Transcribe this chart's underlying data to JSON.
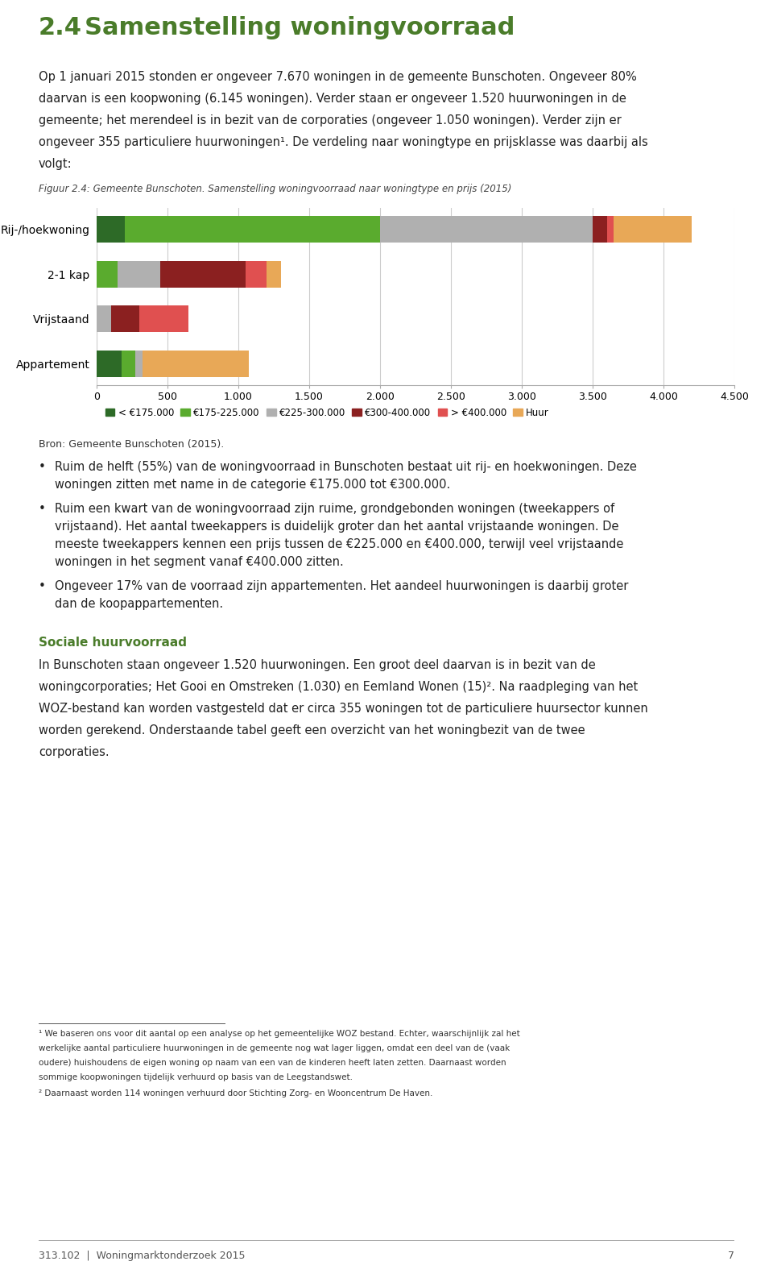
{
  "categories": [
    "Rij-/hoekwoning",
    "2-1 kap",
    "Vrijstaand",
    "Appartement"
  ],
  "series": {
    "< €175.000": [
      200,
      0,
      0,
      175
    ],
    "€175-225.000": [
      1800,
      150,
      0,
      100
    ],
    "€225-300.000": [
      1500,
      300,
      100,
      50
    ],
    "€300-400.000": [
      100,
      600,
      200,
      0
    ],
    "> €400.000": [
      50,
      150,
      350,
      0
    ],
    "Huur": [
      550,
      100,
      0,
      750
    ]
  },
  "colors": {
    "< €175.000": "#2d6a27",
    "€175-225.000": "#5aab2e",
    "€225-300.000": "#b0b0b0",
    "€300-400.000": "#8b2020",
    "> €400.000": "#e05050",
    "Huur": "#e8a857"
  },
  "xlim": [
    0,
    4500
  ],
  "xticks": [
    0,
    500,
    1000,
    1500,
    2000,
    2500,
    3000,
    3500,
    4000,
    4500
  ],
  "xtick_labels": [
    "0",
    "500",
    "1.000",
    "1.500",
    "2.000",
    "2.500",
    "3.000",
    "3.500",
    "4.000",
    "4.500"
  ],
  "chart_title": "Figuur 2.4: Gemeente Bunschoten. Samenstelling woningvoorraad naar woningtype en prijs (2015)",
  "source": "Bron: Gemeente Bunschoten (2015).",
  "header_num": "2.4",
  "header_text": "Samenstelling woningvoorraad",
  "intro_lines": [
    "Op 1 januari 2015 stonden er ongeveer 7.670 woningen in de gemeente Bunschoten. Ongeveer 80%",
    "daarvan is een koopwoning (6.145 woningen). Verder staan er ongeveer 1.520 huurwoningen in de",
    "gemeente; het merendeel is in bezit van de corporaties (ongeveer 1.050 woningen). Verder zijn er",
    "ongeveer 355 particuliere huurwoningen¹. De verdeling naar woningtype en prijsklasse was daarbij als",
    "volgt:"
  ],
  "bullet1_lines": [
    "Ruim de helft (55%) van de woningvoorraad in Bunschoten bestaat uit rij- en hoekwoningen. Deze",
    "woningen zitten met name in de categorie €175.000 tot €300.000."
  ],
  "bullet2_lines": [
    "Ruim een kwart van de woningvoorraad zijn ruime, grondgebonden woningen (tweekappers of",
    "vrijstaand). Het aantal tweekappers is duidelijk groter dan het aantal vrijstaande woningen. De",
    "meeste tweekappers kennen een prijs tussen de €225.000 en €400.000, terwijl veel vrijstaande",
    "woningen in het segment vanaf €400.000 zitten."
  ],
  "bullet3_lines": [
    "Ongeveer 17% van de voorraad zijn appartementen. Het aandeel huurwoningen is daarbij groter",
    "dan de koopappartementen."
  ],
  "social_header": "Sociale huurvoorraad",
  "social_lines": [
    "In Bunschoten staan ongeveer 1.520 huurwoningen. Een groot deel daarvan is in bezit van de",
    "woningcorporaties; Het Gooi en Omstreken (1.030) en Eemland Wonen (15)². Na raadpleging van het",
    "WOZ-bestand kan worden vastgesteld dat er circa 355 woningen tot de particuliere huursector kunnen",
    "worden gerekend. Onderstaande tabel geeft een overzicht van het woningbezit van de twee",
    "corporaties."
  ],
  "footnote1_lines": [
    "¹ We baseren ons voor dit aantal op een analyse op het gemeentelijke WOZ bestand. Echter, waarschijnlijk zal het",
    "werkelijke aantal particuliere huurwoningen in de gemeente nog wat lager liggen, omdat een deel van de (vaak",
    "oudere) huishoudens de eigen woning op naam van een van de kinderen heeft laten zetten. Daarnaast worden",
    "sommige koopwoningen tijdelijk verhuurd op basis van de Leegstandswet."
  ],
  "footnote2": "² Daarnaast worden 114 woningen verhuurd door Stichting Zorg- en Wooncentrum De Haven.",
  "page_footer": "313.102  |  Woningmarktonderzoek 2015",
  "page_number": "7",
  "background_color": "#ffffff",
  "text_color": "#222222",
  "header_color": "#4a7c2a",
  "social_header_color": "#4a7c2a",
  "footnote_color": "#333333",
  "source_color": "#333333"
}
